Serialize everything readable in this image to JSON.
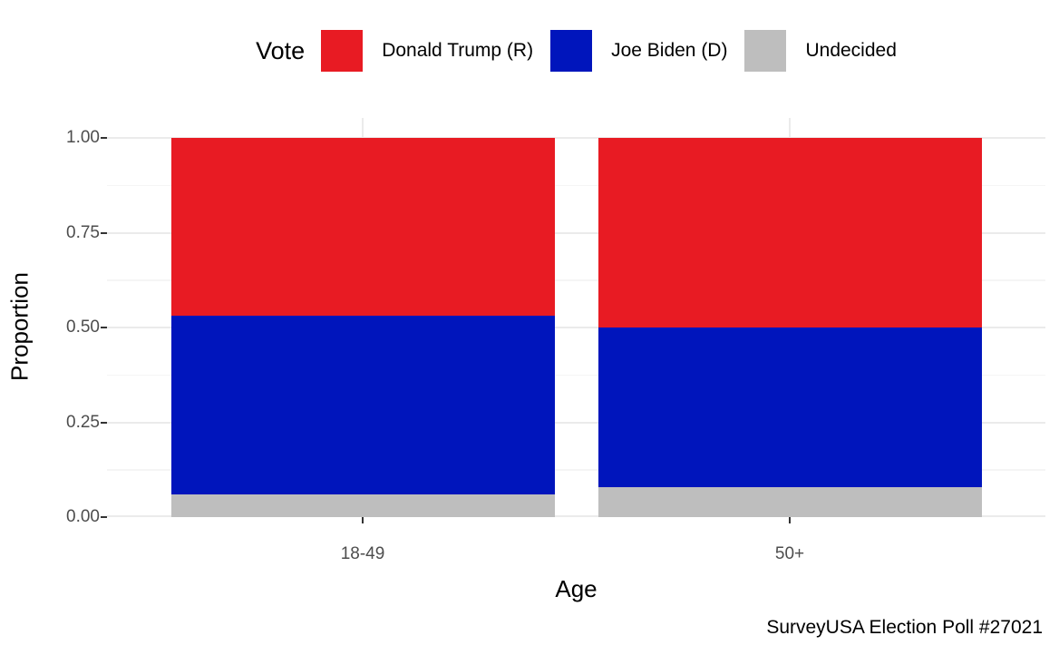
{
  "chart_data": {
    "type": "bar",
    "stacked": true,
    "orientation": "vertical",
    "xlabel": "Age",
    "ylabel": "Proportion",
    "caption": "SurveyUSA Election Poll #27021",
    "legend_title": "Vote",
    "legend_position": "top",
    "grid": true,
    "categories": [
      "18-49",
      "50+"
    ],
    "series": [
      {
        "name": "Donald Trump (R)",
        "color": "#E81B23",
        "values": [
          0.47,
          0.5
        ]
      },
      {
        "name": "Joe Biden (D)",
        "color": "#0015BC",
        "values": [
          0.47,
          0.42
        ]
      },
      {
        "name": "Undecided",
        "color": "#BEBEBE",
        "values": [
          0.06,
          0.08
        ]
      }
    ],
    "ylim": [
      0,
      1
    ],
    "y_ticks": [
      "1.00",
      "0.75",
      "0.50",
      "0.25",
      "0.00"
    ],
    "y_tick_values": [
      1.0,
      0.75,
      0.5,
      0.25,
      0.0
    ],
    "y_minor_values": [
      0.875,
      0.625,
      0.375,
      0.125
    ]
  },
  "colors": {
    "background": "#FFFFFF",
    "grid_major": "#EBEBEB",
    "grid_minor": "#F5F5F5",
    "tick_mark": "#333333",
    "tick_text": "#4D4D4D",
    "title_text": "#000000"
  }
}
